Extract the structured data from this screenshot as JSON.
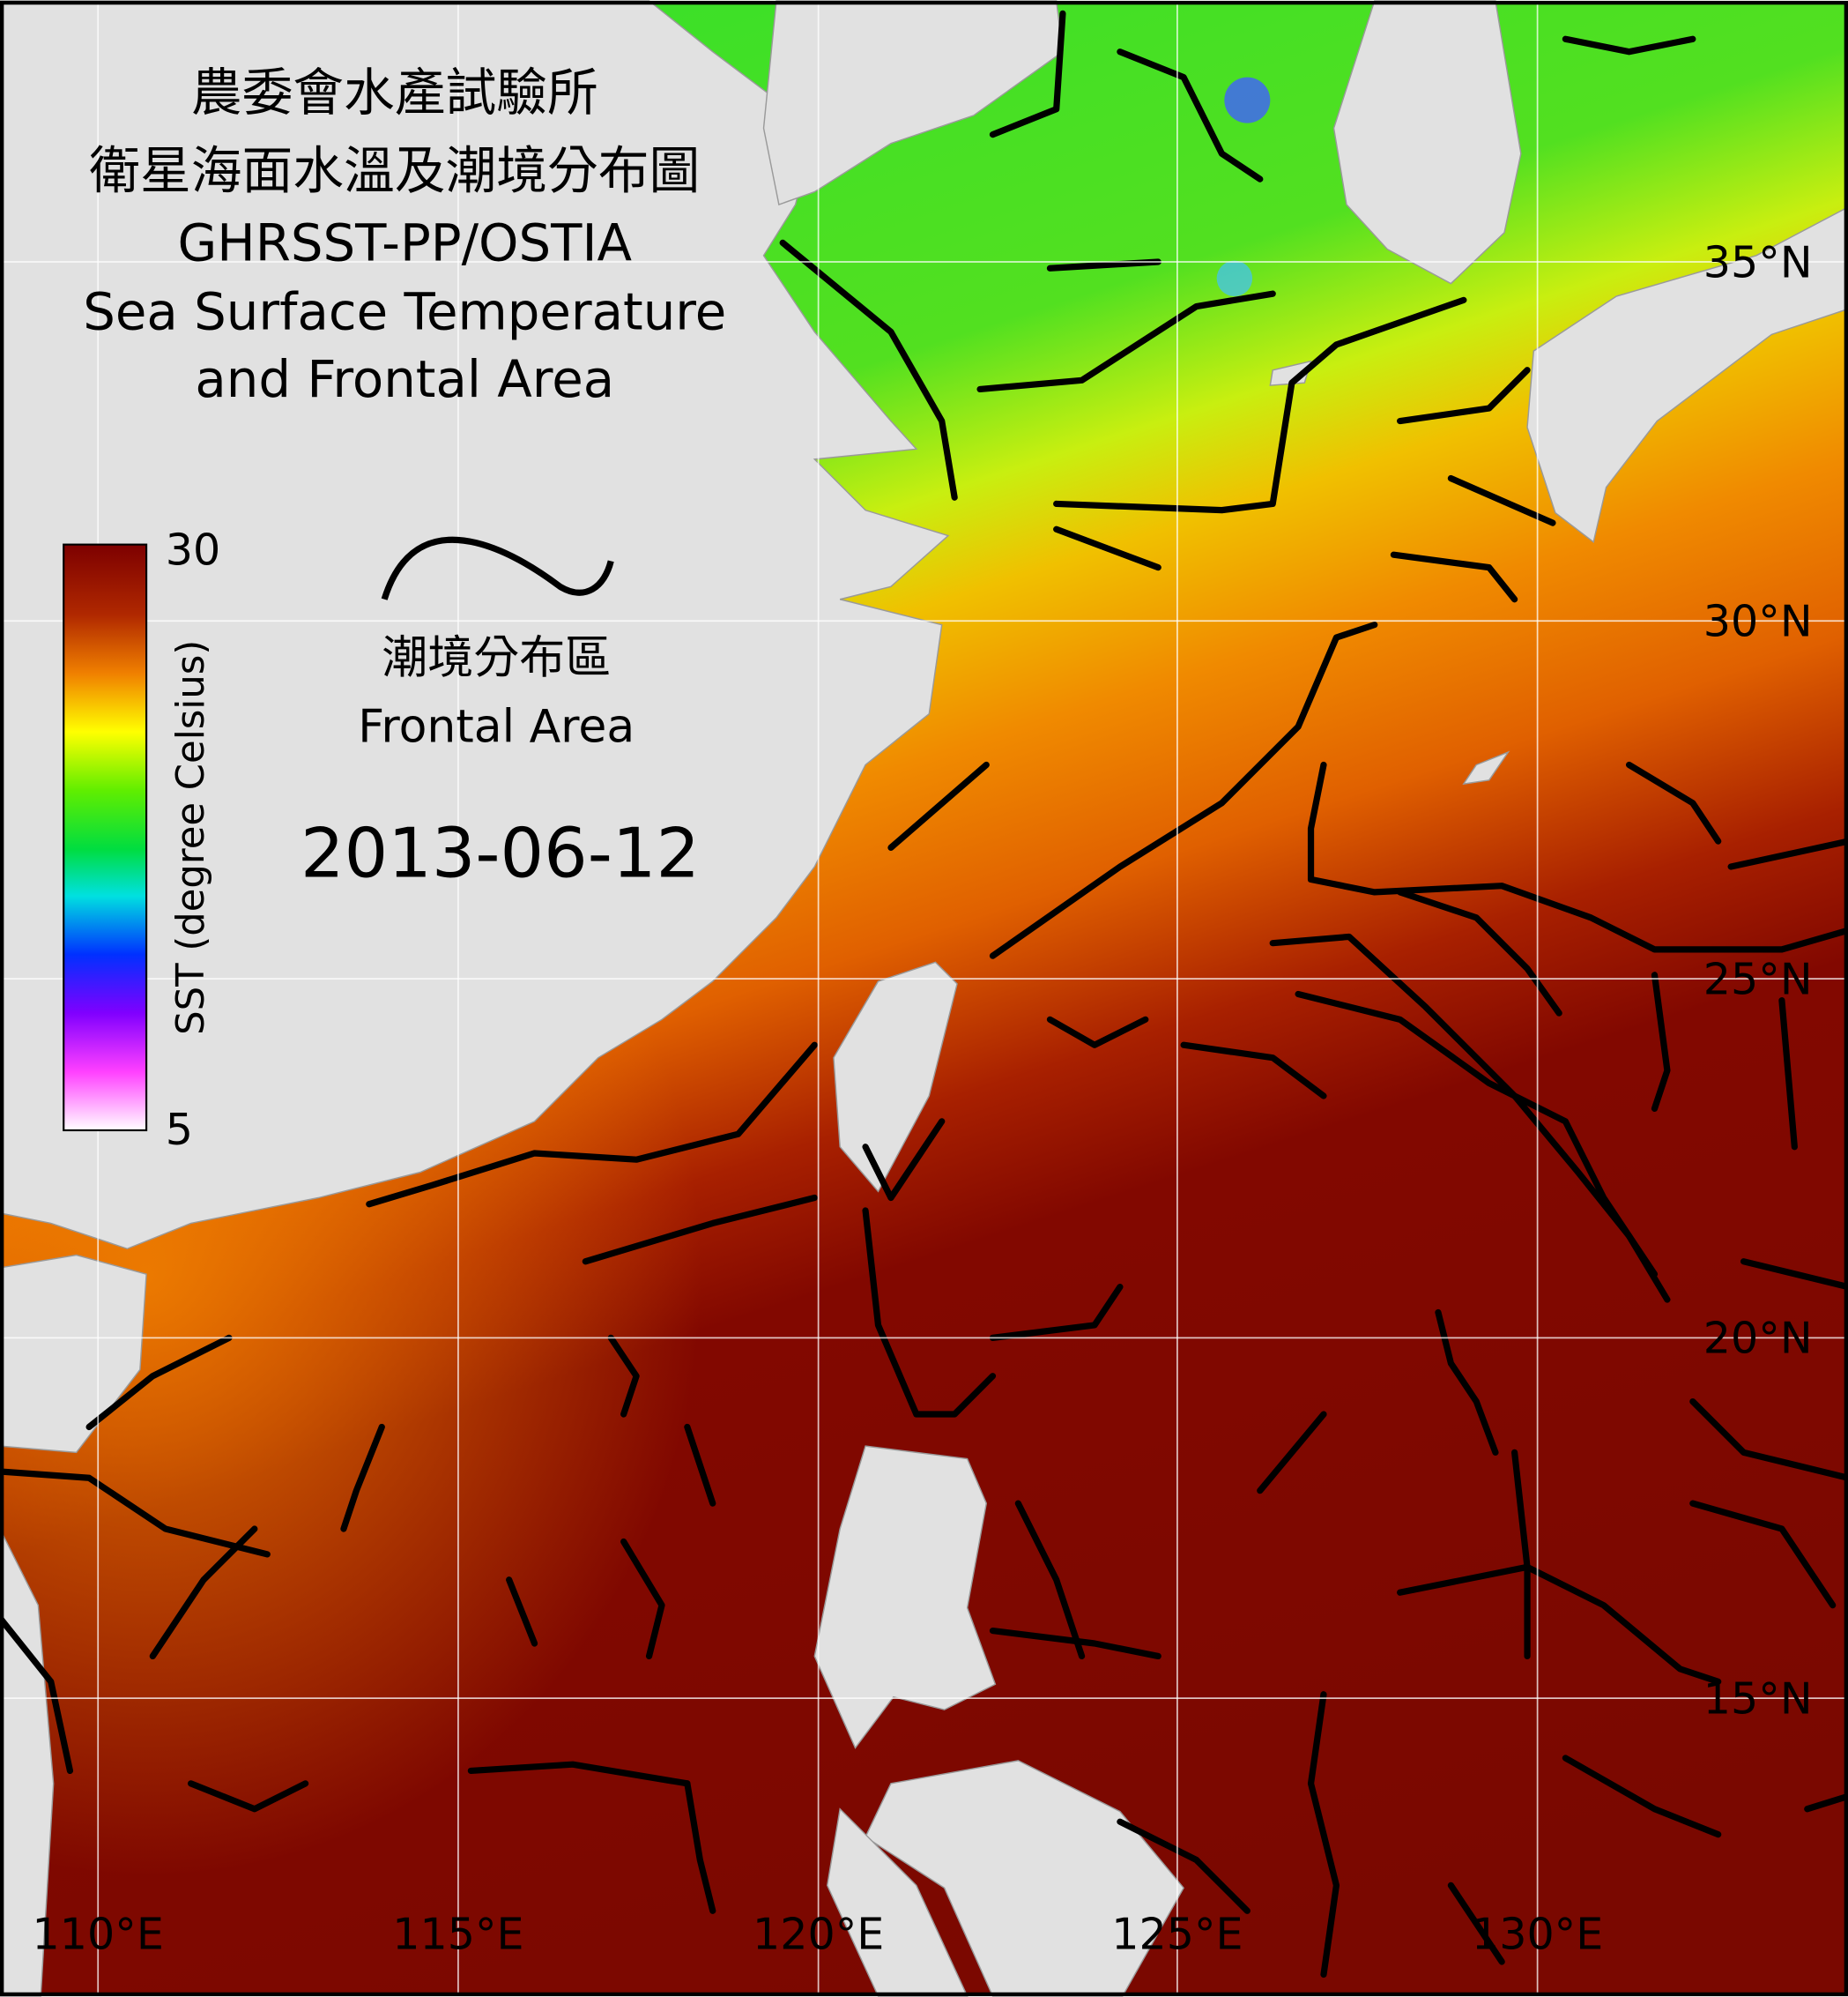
{
  "title": [
    "農委會水產試驗所",
    "衛星海面水溫及潮境分布圖",
    "GHRSST-PP/OSTIA",
    "Sea Surface Temperature",
    "and Frontal Area"
  ],
  "colorbar": {
    "label": "SST (degree Celsius)",
    "max": "30",
    "min": "5"
  },
  "legend": {
    "label_zh": "潮境分布區",
    "label_en": "Frontal Area"
  },
  "date": "2013-06-12",
  "lat_labels": [
    "35°N",
    "30°N",
    "25°N",
    "20°N",
    "15°N"
  ],
  "lon_labels": [
    "110°E",
    "115°E",
    "120°E",
    "125°E",
    "130°E"
  ]
}
